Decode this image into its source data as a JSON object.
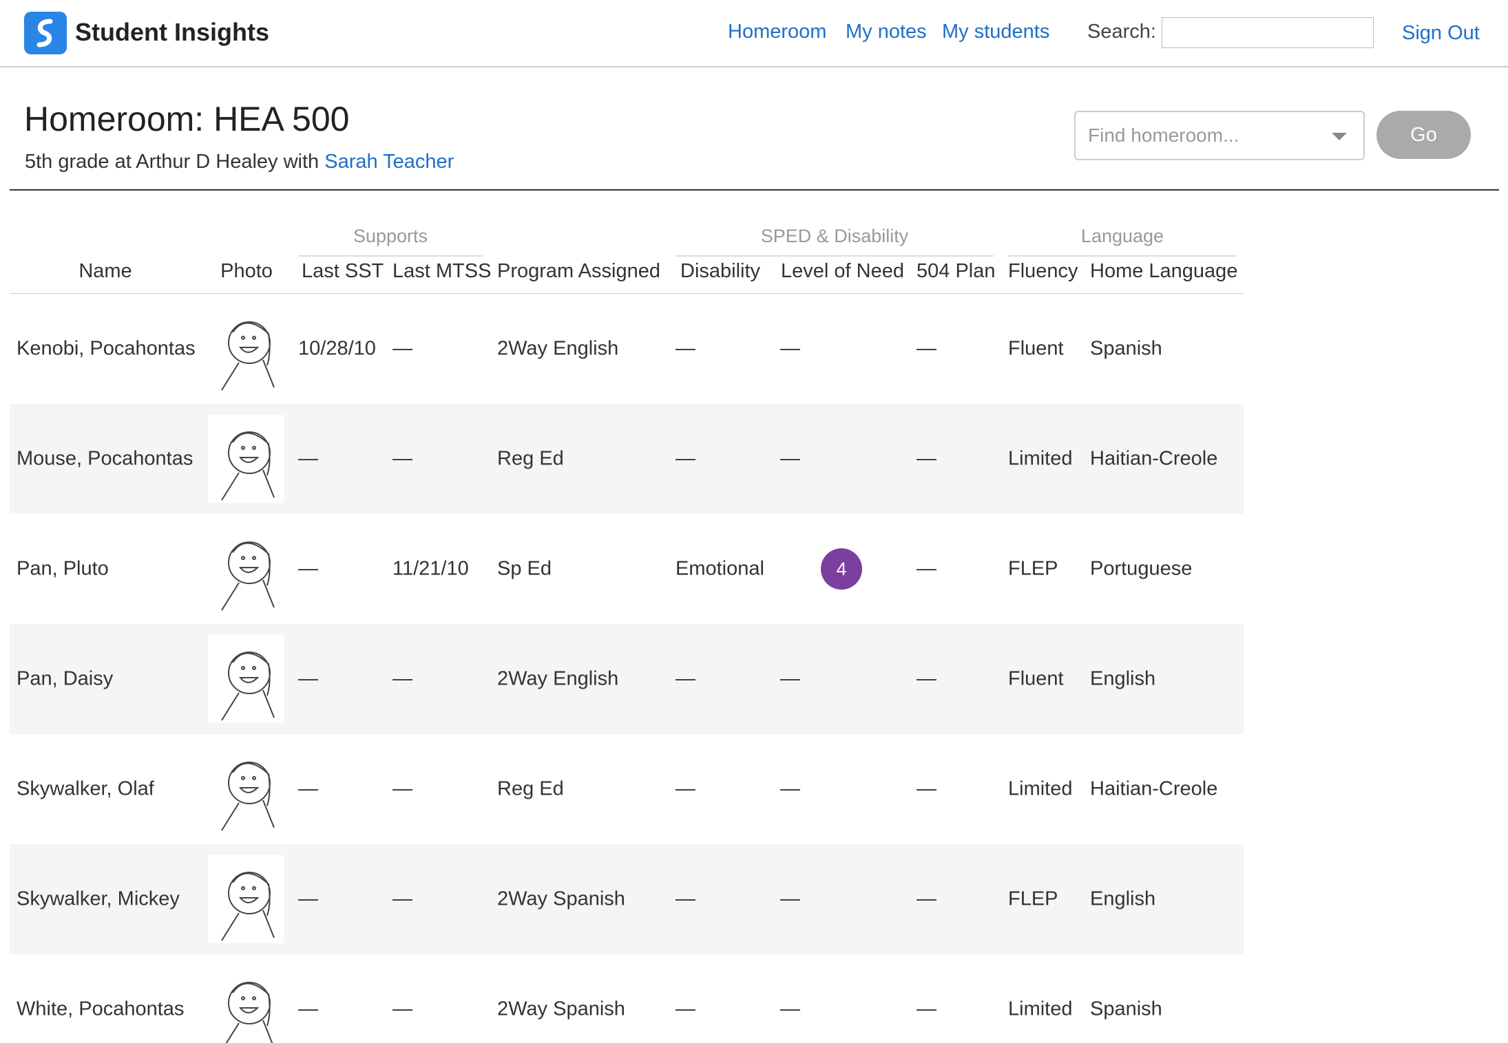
{
  "nav": {
    "brand": "Student Insights",
    "links": [
      "Homeroom",
      "My notes",
      "My students"
    ],
    "search_label": "Search:",
    "sign_out": "Sign Out"
  },
  "header": {
    "title": "Homeroom: HEA 500",
    "subtitle_prefix": "5th grade at Arthur D Healey with",
    "teacher": "Sarah Teacher",
    "select_placeholder": "Find homeroom...",
    "go": "Go"
  },
  "table": {
    "groups": [
      "Supports",
      "SPED & Disability",
      "Language"
    ],
    "columns": [
      "Name",
      "Photo",
      "Last SST",
      "Last MTSS",
      "Program Assigned",
      "Disability",
      "Level of Need",
      "504 Plan",
      "Fluency",
      "Home Language"
    ],
    "rows": [
      {
        "name": "Kenobi, Pocahontas",
        "last_sst": "10/28/10",
        "last_mtss": "—",
        "program": "2Way English",
        "disability": "—",
        "level_of_need": "—",
        "plan_504": "—",
        "fluency": "Fluent",
        "home_language": "Spanish"
      },
      {
        "name": "Mouse, Pocahontas",
        "last_sst": "—",
        "last_mtss": "—",
        "program": "Reg Ed",
        "disability": "—",
        "level_of_need": "—",
        "plan_504": "—",
        "fluency": "Limited",
        "home_language": "Haitian-Creole"
      },
      {
        "name": "Pan, Pluto",
        "last_sst": "—",
        "last_mtss": "11/21/10",
        "program": "Sp Ed",
        "disability": "Emotional",
        "level_of_need": 4,
        "plan_504": "—",
        "fluency": "FLEP",
        "home_language": "Portuguese"
      },
      {
        "name": "Pan, Daisy",
        "last_sst": "—",
        "last_mtss": "—",
        "program": "2Way English",
        "disability": "—",
        "level_of_need": "—",
        "plan_504": "—",
        "fluency": "Fluent",
        "home_language": "English"
      },
      {
        "name": "Skywalker, Olaf",
        "last_sst": "—",
        "last_mtss": "—",
        "program": "Reg Ed",
        "disability": "—",
        "level_of_need": "—",
        "plan_504": "—",
        "fluency": "Limited",
        "home_language": "Haitian-Creole"
      },
      {
        "name": "Skywalker, Mickey",
        "last_sst": "—",
        "last_mtss": "—",
        "program": "2Way Spanish",
        "disability": "—",
        "level_of_need": "—",
        "plan_504": "—",
        "fluency": "FLEP",
        "home_language": "English"
      },
      {
        "name": "White, Pocahontas",
        "last_sst": "—",
        "last_mtss": "—",
        "program": "2Way Spanish",
        "disability": "—",
        "level_of_need": "—",
        "plan_504": "—",
        "fluency": "Limited",
        "home_language": "Spanish"
      }
    ]
  }
}
